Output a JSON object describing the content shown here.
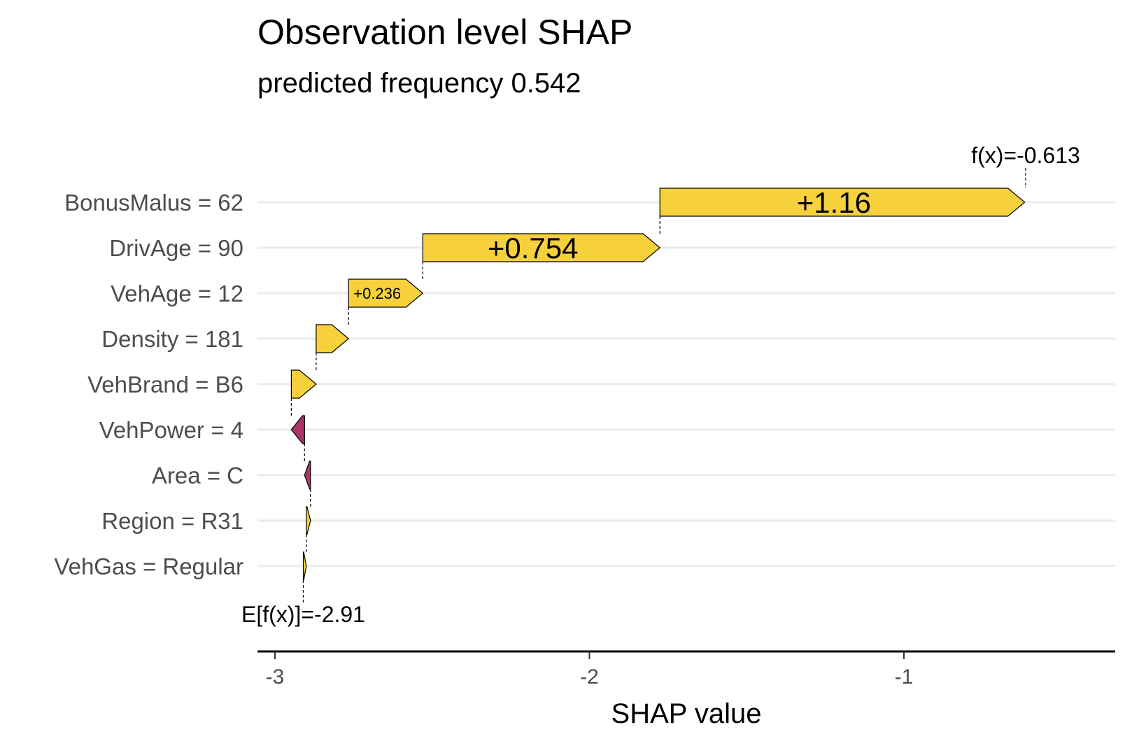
{
  "chart_data": {
    "type": "waterfall",
    "title": "Observation level SHAP",
    "subtitle": "predicted frequency 0.542",
    "xlabel": "SHAP value",
    "xlim": [
      -3.05,
      -0.35
    ],
    "xticks": [
      -3,
      -2,
      -1
    ],
    "xtick_labels": [
      "-3",
      "-2",
      "-1"
    ],
    "baseline": -2.91,
    "baseline_label": "E[f(x)]=-2.91",
    "prediction": -0.613,
    "prediction_label": "f(x)=-0.613",
    "positive_color": "#F6D13B",
    "negative_color": "#A93566",
    "bars": [
      {
        "feature": "BonusMalus = 62",
        "value": 1.16,
        "label": "+1.16"
      },
      {
        "feature": "DrivAge = 90",
        "value": 0.754,
        "label": "+0.754"
      },
      {
        "feature": "VehAge = 12",
        "value": 0.236,
        "label": "+0.236"
      },
      {
        "feature": "Density = 181",
        "value": 0.103,
        "label": ""
      },
      {
        "feature": "VehBrand = B6",
        "value": 0.079,
        "label": ""
      },
      {
        "feature": "VehPower = 4",
        "value": -0.042,
        "label": ""
      },
      {
        "feature": "Area = C",
        "value": -0.019,
        "label": ""
      },
      {
        "feature": "Region = R31",
        "value": 0.013,
        "label": ""
      },
      {
        "feature": "VehGas = Regular",
        "value": 0.01,
        "label": ""
      }
    ]
  }
}
